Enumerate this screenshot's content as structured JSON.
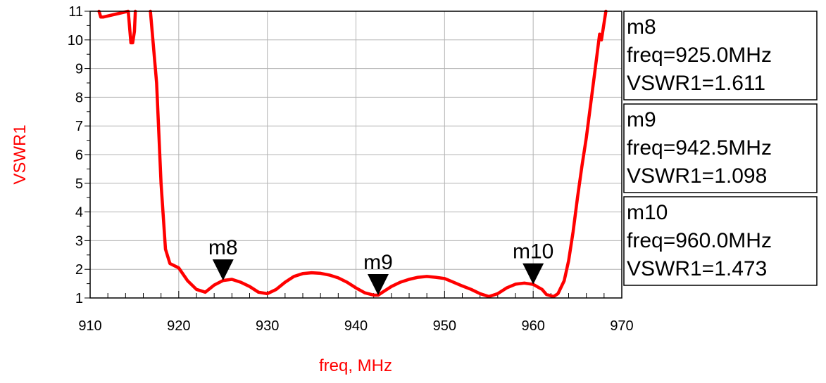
{
  "chart_data": {
    "type": "line",
    "title": "",
    "xlabel": "freq, MHz",
    "ylabel": "VSWR1",
    "xlim": [
      910,
      970
    ],
    "ylim": [
      1,
      11
    ],
    "xticks": [
      910,
      920,
      930,
      940,
      950,
      960,
      970
    ],
    "yticks": [
      1,
      2,
      3,
      4,
      5,
      6,
      7,
      8,
      9,
      10,
      11
    ],
    "grid": true,
    "colors": {
      "trace": "#ff0000",
      "axis_label": "#ff0000",
      "grid": "#b4b4b4"
    },
    "series": [
      {
        "values": [
          [
            911,
            11.0
          ],
          [
            911.2,
            10.8
          ],
          [
            911.5,
            10.8
          ],
          [
            914.3,
            11.0
          ],
          [
            914.6,
            9.9
          ],
          [
            914.8,
            9.9
          ],
          [
            915.0,
            10.3
          ],
          [
            915.1,
            11.0
          ],
          [
            916.8,
            11.0
          ],
          [
            917.5,
            8.5
          ],
          [
            918.0,
            5.0
          ],
          [
            918.5,
            2.7
          ],
          [
            919.0,
            2.2
          ],
          [
            920.0,
            2.05
          ],
          [
            921.0,
            1.6
          ],
          [
            922.0,
            1.3
          ],
          [
            923.0,
            1.2
          ],
          [
            924.0,
            1.45
          ],
          [
            925.0,
            1.611
          ],
          [
            926.0,
            1.65
          ],
          [
            927.0,
            1.55
          ],
          [
            928.0,
            1.4
          ],
          [
            929.0,
            1.2
          ],
          [
            930.0,
            1.15
          ],
          [
            931.0,
            1.3
          ],
          [
            932.0,
            1.55
          ],
          [
            933.0,
            1.75
          ],
          [
            934.0,
            1.85
          ],
          [
            935.0,
            1.88
          ],
          [
            936.0,
            1.86
          ],
          [
            937.0,
            1.8
          ],
          [
            938.0,
            1.7
          ],
          [
            939.0,
            1.55
          ],
          [
            940.0,
            1.35
          ],
          [
            941.0,
            1.18
          ],
          [
            942.0,
            1.1
          ],
          [
            942.5,
            1.098
          ],
          [
            943.0,
            1.2
          ],
          [
            944.0,
            1.4
          ],
          [
            945.0,
            1.55
          ],
          [
            946.0,
            1.65
          ],
          [
            947.0,
            1.72
          ],
          [
            948.0,
            1.75
          ],
          [
            949.0,
            1.72
          ],
          [
            950.0,
            1.68
          ],
          [
            951.0,
            1.55
          ],
          [
            952.0,
            1.42
          ],
          [
            953.0,
            1.3
          ],
          [
            954.0,
            1.15
          ],
          [
            955.0,
            1.05
          ],
          [
            956.0,
            1.15
          ],
          [
            957.0,
            1.35
          ],
          [
            958.0,
            1.48
          ],
          [
            959.0,
            1.52
          ],
          [
            960.0,
            1.473
          ],
          [
            961.0,
            1.3
          ],
          [
            961.5,
            1.12
          ],
          [
            962.3,
            1.05
          ],
          [
            962.8,
            1.15
          ],
          [
            963.5,
            1.6
          ],
          [
            964.0,
            2.3
          ],
          [
            964.5,
            3.3
          ],
          [
            965.0,
            4.5
          ],
          [
            965.5,
            5.6
          ],
          [
            966.0,
            6.6
          ],
          [
            966.5,
            7.8
          ],
          [
            967.0,
            9.0
          ],
          [
            967.5,
            10.2
          ],
          [
            967.7,
            10.0
          ],
          [
            968.2,
            11.0
          ]
        ]
      }
    ],
    "markers": [
      {
        "name": "m8",
        "freq": 925.0,
        "value": 1.611,
        "lines": [
          "m8",
          "freq=925.0MHz",
          "VSWR1=1.611"
        ]
      },
      {
        "name": "m9",
        "freq": 942.5,
        "value": 1.098,
        "lines": [
          "m9",
          "freq=942.5MHz",
          "VSWR1=1.098"
        ]
      },
      {
        "name": "m10",
        "freq": 960.0,
        "value": 1.473,
        "lines": [
          "m10",
          "freq=960.0MHz",
          "VSWR1=1.473"
        ]
      }
    ]
  }
}
